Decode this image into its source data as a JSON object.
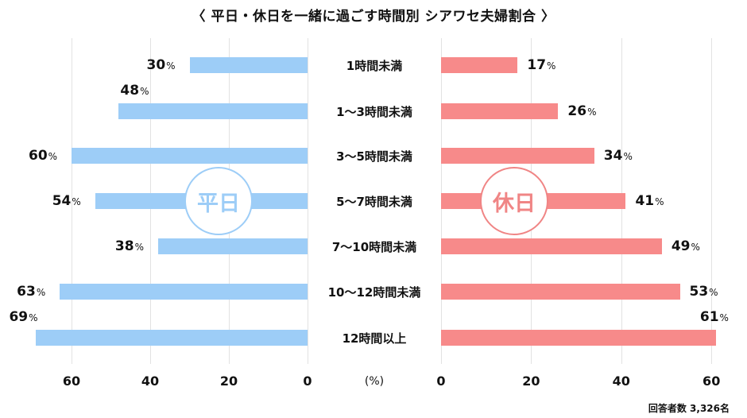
{
  "title": "〈 平日・休日を一緒に過ごす時間別 シアワセ夫婦割合 〉",
  "colors": {
    "weekday": "#9dcdf7",
    "holiday": "#f78a8a"
  },
  "badges": {
    "left": "平日",
    "right": "休日"
  },
  "axis": {
    "left_ticks": [
      "60",
      "40",
      "20",
      "0"
    ],
    "right_ticks": [
      "0",
      "20",
      "40",
      "60"
    ],
    "unit": "(%)"
  },
  "note": "回答者数 3,326名",
  "percent_sign": "%",
  "chart_data": {
    "type": "bar",
    "title": "〈 平日・休日を一緒に過ごす時間別 シアワセ夫婦割合 〉",
    "orientation": "horizontal-butterfly",
    "categories": [
      "1時間未満",
      "1〜3時間未満",
      "3〜5時間未満",
      "5〜7時間未満",
      "7〜10時間未満",
      "10〜12時間未満",
      "12時間以上"
    ],
    "series": [
      {
        "name": "平日",
        "values": [
          30,
          48,
          60,
          54,
          38,
          63,
          69
        ],
        "color": "#9dcdf7"
      },
      {
        "name": "休日",
        "values": [
          17,
          26,
          34,
          41,
          49,
          53,
          61
        ],
        "color": "#f78a8a"
      }
    ],
    "xlabel": "(%)",
    "ylabel": "",
    "xlim": [
      0,
      60
    ],
    "grid": true,
    "annotation": "回答者数 3,326名"
  }
}
